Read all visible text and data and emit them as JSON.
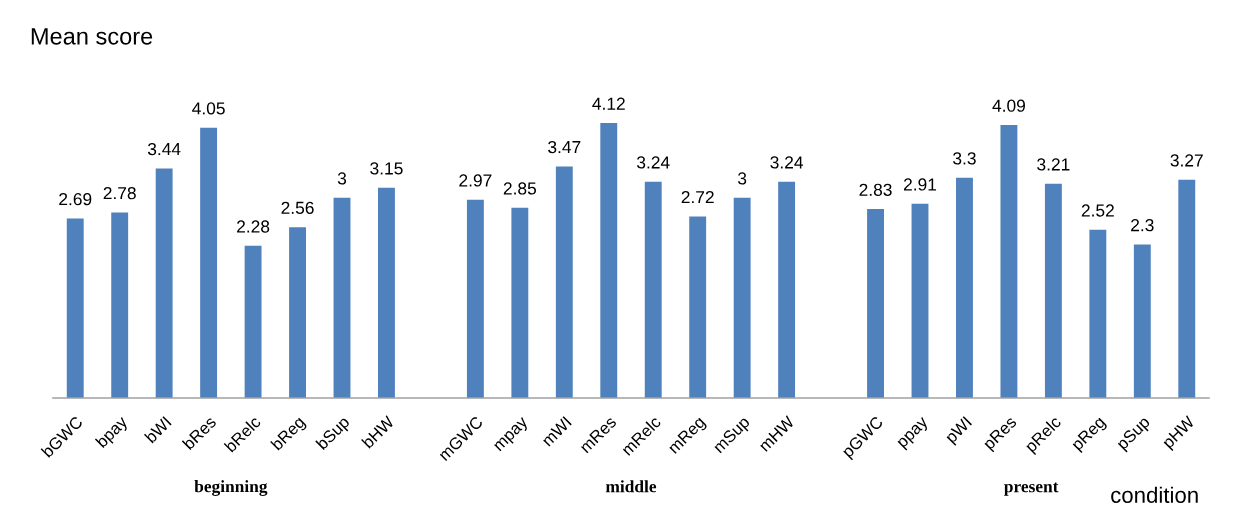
{
  "chart_data": {
    "type": "bar",
    "ylabel": "Mean score",
    "xlabel": "condition",
    "categories": [
      "bGWC",
      "bpay",
      "bWI",
      "bRes",
      "bRelc",
      "bReg",
      "bSup",
      "bHW",
      null,
      "mGWC",
      "mpay",
      "mWI",
      "mRes",
      "mRelc",
      "mReg",
      "mSup",
      "mHW",
      null,
      "pGWC",
      "ppay",
      "pWI",
      "pRes",
      "pRelc",
      "pReg",
      "pSup",
      "pHW"
    ],
    "values": [
      2.69,
      2.78,
      3.44,
      4.05,
      2.28,
      2.56,
      3,
      3.15,
      null,
      2.97,
      2.85,
      3.47,
      4.12,
      3.24,
      2.72,
      3,
      3.24,
      null,
      2.83,
      2.91,
      3.3,
      4.09,
      3.21,
      2.52,
      2.3,
      3.27
    ],
    "color": "#4f81bd",
    "data_labels": true,
    "tick_labels": "x",
    "annotations": [
      "beginning",
      "middle",
      "present"
    ]
  }
}
